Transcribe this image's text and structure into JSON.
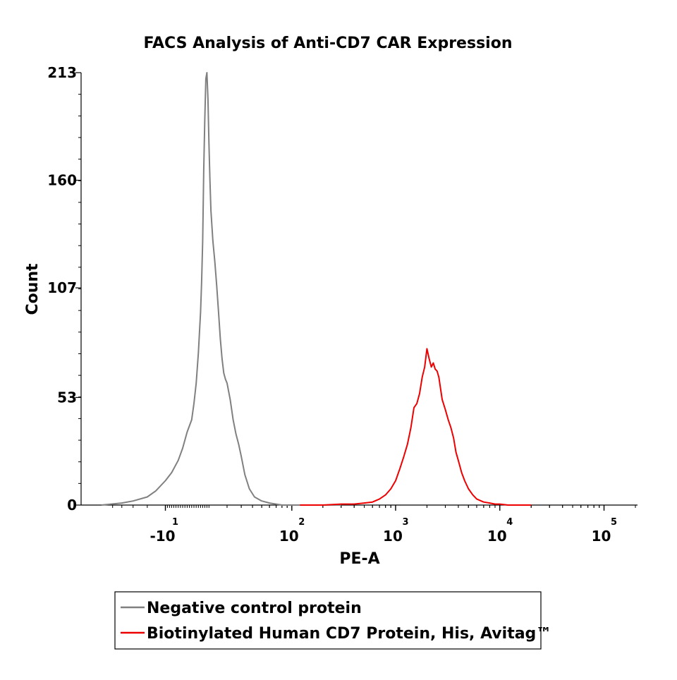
{
  "chart_data": {
    "type": "line",
    "title": "FACS Analysis of Anti-CD7 CAR Expression",
    "xlabel": "PE-A",
    "ylabel": "Count",
    "y_ticks": [
      0,
      53,
      107,
      160,
      213
    ],
    "y_tick_labels": [
      "0",
      "53",
      "107",
      "160",
      "213"
    ],
    "ylim": [
      0,
      213
    ],
    "x_scale": "biexponential",
    "x_ticks": [
      {
        "value": -10,
        "base": "-10",
        "exp": "1"
      },
      {
        "value": 100,
        "base": "10",
        "exp": "2"
      },
      {
        "value": 1000,
        "base": "10",
        "exp": "3"
      },
      {
        "value": 10000,
        "base": "10",
        "exp": "4"
      },
      {
        "value": 100000,
        "base": "10",
        "exp": "5"
      }
    ],
    "grid": false,
    "legend_position": "bottom",
    "series": [
      {
        "name": "Negative control protein",
        "color": "#808080",
        "points": [
          [
            -65,
            0
          ],
          [
            -40,
            1
          ],
          [
            -30,
            2
          ],
          [
            -20,
            4
          ],
          [
            -15,
            7
          ],
          [
            -10,
            12
          ],
          [
            -7,
            16
          ],
          [
            -4,
            22
          ],
          [
            -2,
            28
          ],
          [
            0,
            36
          ],
          [
            2,
            42
          ],
          [
            3,
            50
          ],
          [
            4,
            60
          ],
          [
            5,
            75
          ],
          [
            6,
            95
          ],
          [
            6.5,
            110
          ],
          [
            7,
            130
          ],
          [
            7.5,
            165
          ],
          [
            8,
            190
          ],
          [
            8.5,
            210
          ],
          [
            9,
            213
          ],
          [
            9.5,
            200
          ],
          [
            10,
            178
          ],
          [
            10.5,
            160
          ],
          [
            11,
            145
          ],
          [
            12,
            130
          ],
          [
            13,
            120
          ],
          [
            14,
            108
          ],
          [
            15,
            95
          ],
          [
            16,
            82
          ],
          [
            17,
            72
          ],
          [
            18,
            65
          ],
          [
            19,
            62
          ],
          [
            20,
            60
          ],
          [
            22,
            52
          ],
          [
            24,
            42
          ],
          [
            26,
            35
          ],
          [
            28,
            30
          ],
          [
            30,
            24
          ],
          [
            33,
            15
          ],
          [
            37,
            8
          ],
          [
            42,
            4
          ],
          [
            50,
            2
          ],
          [
            60,
            1
          ],
          [
            80,
            0
          ],
          [
            150,
            0
          ],
          [
            300,
            0
          ]
        ]
      },
      {
        "name": "Biotinylated Human CD7 Protein, His, Avitag™",
        "color": "#ee0000",
        "points": [
          [
            120,
            0
          ],
          [
            200,
            0
          ],
          [
            300,
            0.5
          ],
          [
            400,
            0.5
          ],
          [
            500,
            1
          ],
          [
            600,
            1.5
          ],
          [
            700,
            3
          ],
          [
            800,
            5
          ],
          [
            900,
            8
          ],
          [
            1000,
            12
          ],
          [
            1100,
            18
          ],
          [
            1200,
            24
          ],
          [
            1300,
            30
          ],
          [
            1400,
            38
          ],
          [
            1500,
            48
          ],
          [
            1600,
            50
          ],
          [
            1700,
            55
          ],
          [
            1800,
            63
          ],
          [
            1900,
            68
          ],
          [
            2000,
            77
          ],
          [
            2100,
            72
          ],
          [
            2200,
            68
          ],
          [
            2300,
            70
          ],
          [
            2400,
            67
          ],
          [
            2500,
            66
          ],
          [
            2600,
            63
          ],
          [
            2800,
            52
          ],
          [
            3000,
            47
          ],
          [
            3200,
            42
          ],
          [
            3400,
            38
          ],
          [
            3600,
            33
          ],
          [
            3800,
            26
          ],
          [
            4000,
            22
          ],
          [
            4300,
            16
          ],
          [
            4600,
            12
          ],
          [
            5000,
            8
          ],
          [
            5500,
            5
          ],
          [
            6000,
            3
          ],
          [
            7000,
            1.5
          ],
          [
            8000,
            1
          ],
          [
            9000,
            0.5
          ],
          [
            10000,
            0.5
          ],
          [
            12000,
            0
          ],
          [
            15000,
            0
          ],
          [
            20000,
            0
          ]
        ]
      }
    ]
  }
}
